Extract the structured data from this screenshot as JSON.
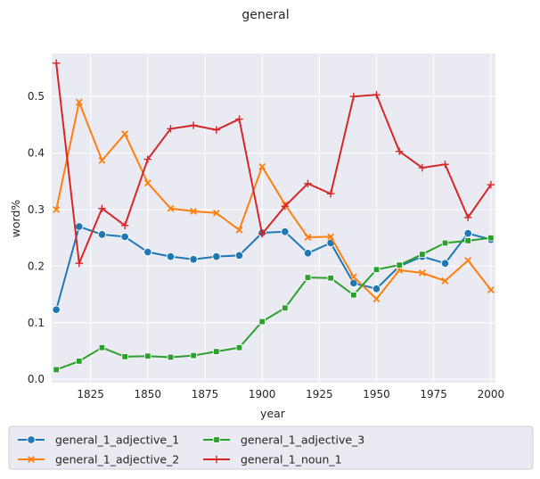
{
  "chart_data": {
    "type": "line",
    "title": "general",
    "xlabel": "year",
    "ylabel": "word%",
    "xlim": [
      1808,
      2002
    ],
    "ylim": [
      -0.006,
      0.576
    ],
    "xticks": [
      1825,
      1850,
      1875,
      1900,
      1925,
      1950,
      1975,
      2000
    ],
    "yticks": [
      0.0,
      0.1,
      0.2,
      0.3,
      0.4,
      0.5
    ],
    "x": [
      1810,
      1820,
      1830,
      1840,
      1850,
      1860,
      1870,
      1880,
      1890,
      1900,
      1910,
      1920,
      1930,
      1940,
      1950,
      1960,
      1970,
      1980,
      1990,
      2000
    ],
    "grid": true,
    "legend_position": "bottom",
    "series": [
      {
        "name": "general_1_adjective_1",
        "color": "#1f77b4",
        "marker": "circle",
        "values": [
          0.123,
          0.27,
          0.256,
          0.252,
          0.225,
          0.217,
          0.212,
          0.217,
          0.219,
          0.259,
          0.261,
          0.223,
          0.241,
          0.17,
          0.16,
          0.2,
          0.217,
          0.205,
          0.258,
          0.247
        ]
      },
      {
        "name": "general_1_adjective_2",
        "color": "#ff7f0e",
        "marker": "x",
        "values": [
          0.3,
          0.49,
          0.387,
          0.434,
          0.347,
          0.302,
          0.297,
          0.294,
          0.264,
          0.376,
          0.309,
          0.251,
          0.252,
          0.181,
          0.142,
          0.193,
          0.188,
          0.174,
          0.21,
          0.158
        ]
      },
      {
        "name": "general_1_adjective_3",
        "color": "#2ca02c",
        "marker": "square",
        "values": [
          0.017,
          0.032,
          0.056,
          0.04,
          0.041,
          0.039,
          0.042,
          0.049,
          0.056,
          0.102,
          0.126,
          0.18,
          0.179,
          0.149,
          0.194,
          0.202,
          0.221,
          0.241,
          0.245,
          0.25
        ]
      },
      {
        "name": "general_1_noun_1",
        "color": "#d62728",
        "marker": "plus",
        "values": [
          0.559,
          0.205,
          0.302,
          0.272,
          0.389,
          0.443,
          0.449,
          0.441,
          0.46,
          0.257,
          0.306,
          0.346,
          0.328,
          0.5,
          0.503,
          0.403,
          0.374,
          0.38,
          0.286,
          0.344
        ]
      }
    ],
    "style": {
      "plot_background": "#eaeaf2",
      "grid_color": "#ffffff",
      "text_color": "#262626"
    }
  }
}
